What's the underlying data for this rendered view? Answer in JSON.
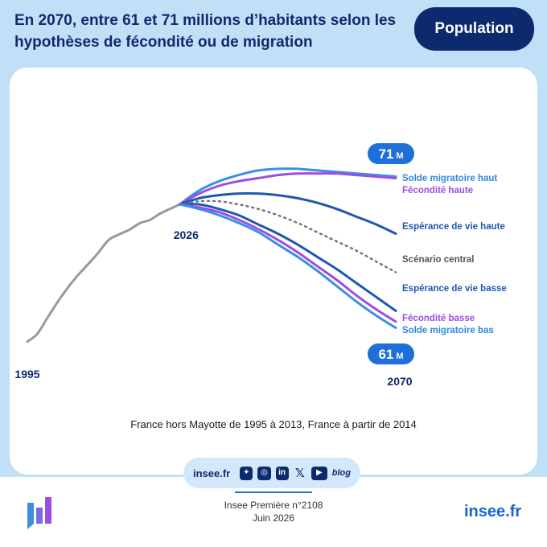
{
  "header": {
    "title": "En 2070, entre 61 et 71 millions d’habitants selon les hypothèses de fécondité ou de migration",
    "badge": "Population"
  },
  "chart_data": {
    "type": "line",
    "x_start": "1995",
    "x_mid": "2026",
    "x_end": "2070",
    "max_badge": "71 M",
    "min_badge": "61 M",
    "historical": {
      "x": [
        1995,
        1997,
        1999,
        2001,
        2003,
        2005,
        2007,
        2009,
        2011,
        2012,
        2014,
        2016,
        2018,
        2020,
        2022,
        2024,
        2026
      ],
      "y": [
        60.0,
        60.5,
        61.5,
        62.5,
        63.4,
        64.2,
        64.9,
        65.6,
        66.4,
        66.7,
        67.0,
        67.3,
        67.7,
        67.9,
        68.3,
        68.6,
        68.9
      ]
    },
    "projections_x": [
      2026,
      2030,
      2034,
      2038,
      2042,
      2046,
      2050,
      2054,
      2058,
      2062,
      2066,
      2070
    ],
    "series": [
      {
        "name": "Solde migratoire haut",
        "color": "#3a8ee6",
        "style": "solid",
        "values": [
          68.9,
          69.8,
          70.4,
          70.8,
          71.1,
          71.2,
          71.2,
          71.1,
          71.0,
          70.9,
          70.8,
          70.7
        ]
      },
      {
        "name": "Fécondité haute",
        "color": "#9c4ee0",
        "style": "solid",
        "values": [
          68.9,
          69.6,
          70.1,
          70.4,
          70.6,
          70.8,
          70.9,
          70.9,
          70.9,
          70.8,
          70.7,
          70.6
        ]
      },
      {
        "name": "Espérance de vie haute",
        "color": "#1f58b0",
        "style": "solid",
        "values": [
          68.9,
          69.3,
          69.5,
          69.6,
          69.6,
          69.5,
          69.3,
          69.0,
          68.6,
          68.1,
          67.6,
          67.0
        ]
      },
      {
        "name": "Scénario central",
        "color": "#777777",
        "style": "dotted",
        "values": [
          68.9,
          69.1,
          69.1,
          68.9,
          68.6,
          68.2,
          67.7,
          67.1,
          66.5,
          65.9,
          65.2,
          64.5
        ]
      },
      {
        "name": "Espérance de vie basse",
        "color": "#1f58b0",
        "style": "solid",
        "values": [
          68.9,
          68.9,
          68.6,
          68.2,
          67.6,
          67.0,
          66.3,
          65.5,
          64.7,
          63.8,
          62.9,
          62.0
        ]
      },
      {
        "name": "Fécondité basse",
        "color": "#9c4ee0",
        "style": "solid",
        "values": [
          68.9,
          68.7,
          68.4,
          67.9,
          67.3,
          66.6,
          65.8,
          64.9,
          64.0,
          63.0,
          62.1,
          61.3
        ]
      },
      {
        "name": "Solde migratoire bas",
        "color": "#3a8ee6",
        "style": "solid",
        "values": [
          68.9,
          68.6,
          68.2,
          67.7,
          67.1,
          66.3,
          65.5,
          64.6,
          63.6,
          62.6,
          61.7,
          60.9
        ]
      }
    ],
    "xlim": [
      1995,
      2070
    ],
    "ylim": [
      59,
      72.5
    ],
    "historical_color": "#999999",
    "grid": false,
    "legend_placement": "right, at line ends",
    "note": "France hors Mayotte de 1995 à 2013, France à partir de 2014"
  },
  "footer": {
    "site": "insee.fr",
    "social_icons": [
      "bluesky-icon",
      "instagram-icon",
      "linkedin-icon",
      "x-icon",
      "youtube-icon",
      "blog-icon"
    ],
    "blog_label": "blog",
    "publication": "Insee Première n°2108",
    "date": "Juin 2026",
    "logo_text": "insee.fr"
  }
}
